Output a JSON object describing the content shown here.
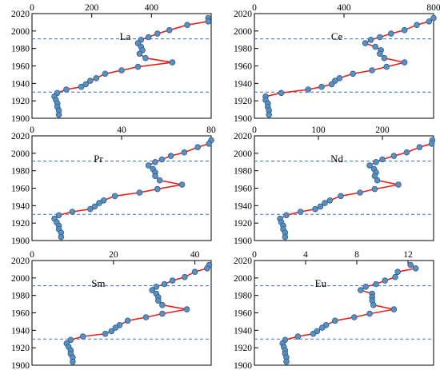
{
  "chart_data": [
    {
      "type": "line",
      "title": "La",
      "xlim": [
        0,
        600
      ],
      "xticks": [
        0,
        200,
        400
      ],
      "ylim": [
        1900,
        2020
      ],
      "yticks": [
        1900,
        1920,
        1940,
        1960,
        1980,
        2000,
        2020
      ],
      "reference_lines_y": [
        1991,
        1930
      ],
      "x": [
        590,
        590,
        520,
        460,
        420,
        390,
        365,
        355,
        365,
        370,
        360,
        380,
        470,
        355,
        300,
        245,
        215,
        195,
        180,
        165,
        115,
        85,
        75,
        80,
        85,
        85,
        90,
        90
      ],
      "y": [
        2015,
        2011,
        2007,
        2001,
        1997,
        1993,
        1990,
        1986,
        1982,
        1978,
        1974,
        1969,
        1964,
        1959,
        1955,
        1951,
        1946,
        1943,
        1939,
        1936,
        1933,
        1929,
        1925,
        1921,
        1917,
        1913,
        1909,
        1904
      ]
    },
    {
      "type": "line",
      "title": "Ce",
      "xlim": [
        0,
        800
      ],
      "xticks": [
        0,
        400,
        800
      ],
      "ylim": [
        1900,
        2020
      ],
      "yticks": [
        1900,
        1920,
        1940,
        1960,
        1980,
        2000,
        2020
      ],
      "reference_lines_y": [
        1991,
        1930
      ],
      "x": [
        800,
        780,
        725,
        670,
        610,
        560,
        520,
        495,
        540,
        565,
        560,
        580,
        670,
        590,
        525,
        440,
        380,
        360,
        345,
        300,
        240,
        120,
        50,
        50,
        60,
        60,
        65,
        65
      ],
      "y": [
        2015,
        2011,
        2007,
        2001,
        1997,
        1993,
        1990,
        1986,
        1982,
        1978,
        1974,
        1969,
        1964,
        1959,
        1955,
        1951,
        1946,
        1943,
        1939,
        1936,
        1933,
        1929,
        1925,
        1921,
        1917,
        1913,
        1909,
        1904
      ]
    },
    {
      "type": "line",
      "title": "Pr",
      "xlim": [
        0,
        80
      ],
      "xticks": [
        0,
        40,
        80
      ],
      "ylim": [
        1900,
        2020
      ],
      "yticks": [
        1900,
        1920,
        1940,
        1960,
        1980,
        2000,
        2020
      ],
      "reference_lines_y": [
        1991,
        1930
      ],
      "x": [
        80,
        79,
        74,
        68,
        62,
        58,
        55,
        52,
        54,
        55,
        55,
        57,
        67,
        56,
        48,
        37,
        32,
        30,
        28,
        26,
        18,
        12,
        10,
        11,
        12,
        12,
        13,
        13
      ],
      "y": [
        2015,
        2011,
        2007,
        2001,
        1997,
        1993,
        1990,
        1986,
        1982,
        1978,
        1974,
        1969,
        1964,
        1959,
        1955,
        1951,
        1946,
        1943,
        1939,
        1936,
        1933,
        1929,
        1925,
        1921,
        1917,
        1913,
        1909,
        1904
      ]
    },
    {
      "type": "line",
      "title": "Nd",
      "xlim": [
        0,
        280
      ],
      "xticks": [
        0,
        100,
        200
      ],
      "ylim": [
        1900,
        2020
      ],
      "yticks": [
        1900,
        1920,
        1940,
        1960,
        1980,
        2000,
        2020
      ],
      "reference_lines_y": [
        1991,
        1930
      ],
      "x": [
        278,
        277,
        258,
        238,
        218,
        200,
        190,
        180,
        187,
        190,
        188,
        192,
        225,
        188,
        165,
        135,
        118,
        110,
        103,
        95,
        72,
        50,
        40,
        42,
        45,
        45,
        48,
        48
      ],
      "y": [
        2015,
        2011,
        2007,
        2001,
        1997,
        1993,
        1990,
        1986,
        1982,
        1978,
        1974,
        1969,
        1964,
        1959,
        1955,
        1951,
        1946,
        1943,
        1939,
        1936,
        1933,
        1929,
        1925,
        1921,
        1917,
        1913,
        1909,
        1904
      ]
    },
    {
      "type": "line",
      "title": "Sm",
      "xlim": [
        0,
        44
      ],
      "xticks": [
        0,
        20,
        40
      ],
      "ylim": [
        1900,
        2020
      ],
      "yticks": [
        1900,
        1920,
        1940,
        1960,
        1980,
        2000,
        2020
      ],
      "reference_lines_y": [
        1991,
        1930
      ],
      "x": [
        43.5,
        43,
        40,
        37.5,
        34.5,
        32.5,
        30.5,
        29.5,
        30.5,
        31,
        31,
        32,
        38,
        32,
        28,
        23.5,
        21.5,
        20.5,
        19.5,
        18,
        12.5,
        9.5,
        8.5,
        9,
        9.5,
        9.5,
        10,
        10
      ],
      "y": [
        2015,
        2011,
        2007,
        2001,
        1997,
        1993,
        1990,
        1986,
        1982,
        1978,
        1974,
        1969,
        1964,
        1959,
        1955,
        1951,
        1946,
        1943,
        1939,
        1936,
        1933,
        1929,
        1925,
        1921,
        1917,
        1913,
        1909,
        1904
      ]
    },
    {
      "type": "line",
      "title": "Eu",
      "xlim": [
        0,
        14
      ],
      "xticks": [
        0,
        4,
        8,
        12
      ],
      "ylim": [
        1900,
        2020
      ],
      "yticks": [
        1900,
        1920,
        1940,
        1960,
        1980,
        2000,
        2020
      ],
      "reference_lines_y": [
        1991,
        1930
      ],
      "x": [
        12.2,
        12.6,
        11.2,
        11,
        10.2,
        9.5,
        8.7,
        8.3,
        9.2,
        9.2,
        9.2,
        9.3,
        10.9,
        9,
        7.8,
        6.3,
        5.6,
        5.3,
        4.9,
        4.6,
        3.4,
        2.4,
        2.2,
        2.3,
        2.4,
        2.4,
        2.5,
        2.5
      ],
      "y": [
        2015,
        2011,
        2007,
        2001,
        1997,
        1993,
        1990,
        1986,
        1982,
        1978,
        1974,
        1969,
        1964,
        1959,
        1955,
        1951,
        1946,
        1943,
        1939,
        1936,
        1933,
        1929,
        1925,
        1921,
        1917,
        1913,
        1909,
        1904
      ]
    }
  ],
  "colors": {
    "line": "#e8221a",
    "marker_fill": "#5b8fbf",
    "marker_stroke": "#2d5f8e",
    "reference_line": "#3a6fbf",
    "axis": "#000000"
  }
}
